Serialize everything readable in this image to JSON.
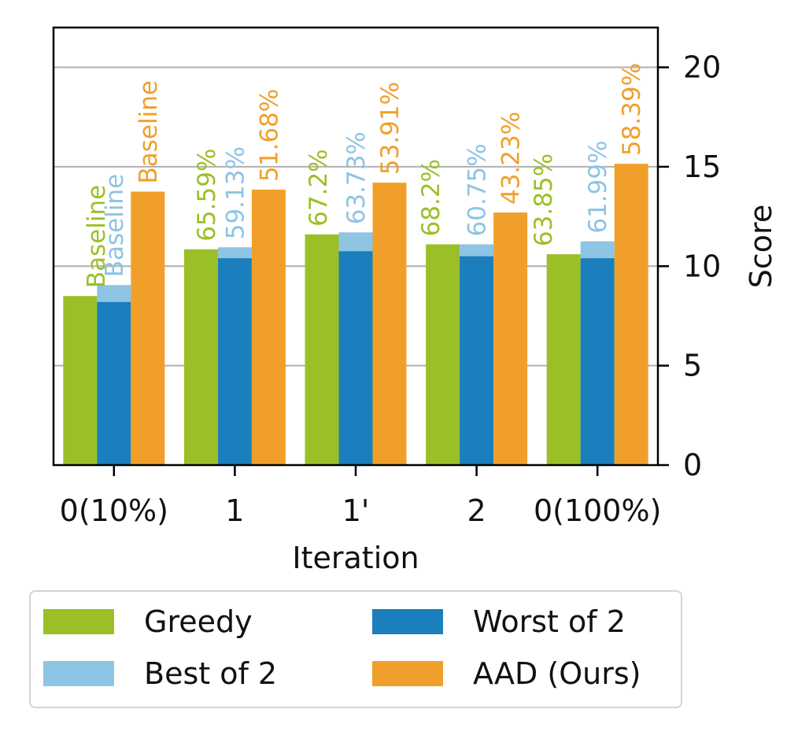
{
  "colors": {
    "greedy": "#9bc027",
    "best": "#8ec4e4",
    "worst": "#1a7fbc",
    "aad": "#f0a02a",
    "grid": "#b0b0b0",
    "axis": "#000000"
  },
  "chart_data": {
    "type": "bar",
    "title": "",
    "xlabel": "Iteration",
    "ylabel": "Score",
    "ylim": [
      0,
      22
    ],
    "yticks": [
      0,
      5,
      10,
      15,
      20
    ],
    "ytick_labels": [
      "0",
      "5",
      "10",
      "15",
      "20"
    ],
    "grid": "horizontal",
    "yaxis_side": "right",
    "categories": [
      "0(10%)",
      "1",
      "1'",
      "2",
      "0(100%)"
    ],
    "series": [
      {
        "name": "Greedy",
        "color_key": "greedy",
        "values": [
          8.5,
          10.85,
          11.6,
          11.1,
          10.6
        ],
        "labels": [
          "Baseline",
          "65.59%",
          "67.2%",
          "68.2%",
          "63.85%"
        ]
      },
      {
        "name": "Best of 2",
        "color_key": "best",
        "values": [
          9.05,
          10.95,
          11.7,
          11.1,
          11.25
        ],
        "labels": [
          "Baseline",
          "59.13%",
          "63.73%",
          "60.75%",
          "61.99%"
        ]
      },
      {
        "name": "Worst of 2",
        "color_key": "worst",
        "values": [
          8.2,
          10.4,
          10.75,
          10.5,
          10.4
        ]
      },
      {
        "name": "AAD (Ours)",
        "color_key": "aad",
        "values": [
          13.75,
          13.85,
          14.2,
          12.7,
          15.15
        ],
        "labels": [
          "Baseline",
          "51.68%",
          "53.91%",
          "43.23%",
          "58.39%"
        ]
      }
    ],
    "legend": {
      "position": "below",
      "entries": [
        "Greedy",
        "Worst of 2",
        "Best of 2",
        "AAD (Ours)"
      ]
    }
  }
}
